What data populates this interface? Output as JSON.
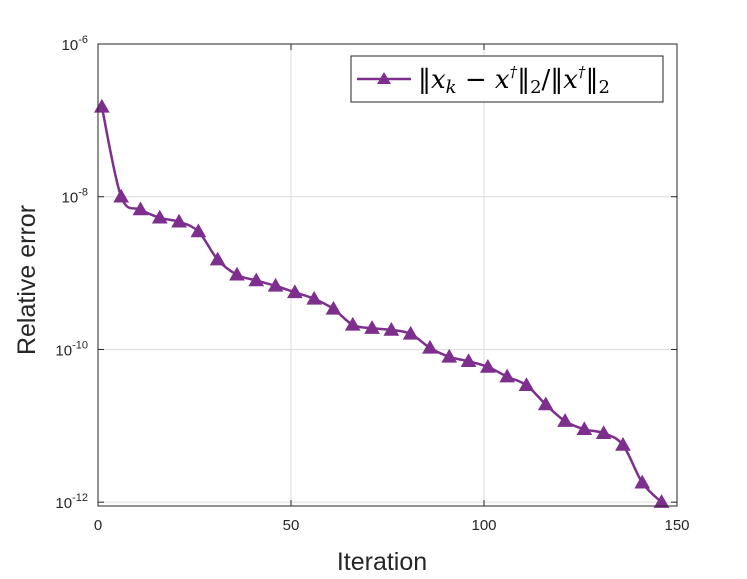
{
  "chart_data": {
    "type": "line",
    "xlabel": "Iteration",
    "ylabel": "Relative  error",
    "xlim": [
      0,
      150
    ],
    "ylim_log10": [
      -12.05,
      -6
    ],
    "y_scale": "log",
    "grid": true,
    "legend_position": "top-right",
    "x_ticks": [
      0,
      50,
      100,
      150
    ],
    "x_tick_labels": [
      "0",
      "50",
      "100",
      "150"
    ],
    "y_ticks_log10": [
      -6,
      -8,
      -10,
      -12
    ],
    "y_tick_labels": [
      {
        "base": "10",
        "exp": "-6"
      },
      {
        "base": "10",
        "exp": "-8"
      },
      {
        "base": "10",
        "exp": "-10"
      },
      {
        "base": "10",
        "exp": "-12"
      }
    ],
    "legend": {
      "label": "‖x_k − x†‖₂/‖x†‖₂",
      "color": "#7e2f8e"
    },
    "series": [
      {
        "color": "#7e2f8e",
        "marker": "triangle",
        "x": [
          1,
          6,
          11,
          16,
          21,
          26,
          31,
          36,
          41,
          46,
          51,
          56,
          61,
          66,
          71,
          76,
          81,
          86,
          91,
          96,
          101,
          106,
          111,
          116,
          121,
          126,
          131,
          136,
          141,
          146
        ],
        "y": [
          1.5e-07,
          1e-08,
          6.8e-09,
          5.3e-09,
          4.7e-09,
          3.5e-09,
          1.5e-09,
          9.5e-10,
          8e-10,
          6.8e-10,
          5.6e-10,
          4.6e-10,
          3.4e-10,
          2.1e-10,
          1.9e-10,
          1.8e-10,
          1.6e-10,
          1.05e-10,
          8e-11,
          7e-11,
          5.9e-11,
          4.4e-11,
          3.4e-11,
          1.9e-11,
          1.15e-11,
          9e-12,
          8e-12,
          5.6e-12,
          1.8e-12,
          1e-12
        ]
      }
    ]
  }
}
